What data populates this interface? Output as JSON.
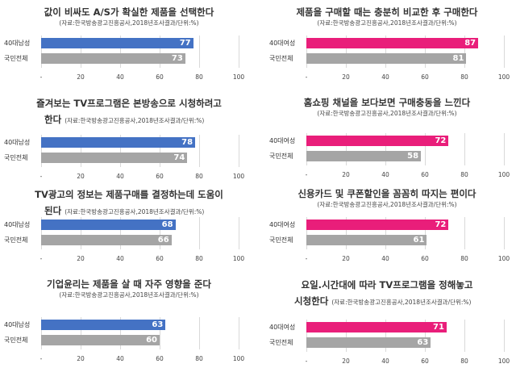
{
  "source": "(자료:한국방송광고진흥공사,2018년조사결과/단위:%)",
  "colors": {
    "male": "#4472c4",
    "female": "#e91e7a",
    "total": "#a5a5a5"
  },
  "chart_data": [
    {
      "type": "bar",
      "title": "값이 비싸도 A/S가 확실한 제품을 선택한다",
      "categories": [
        "40대남성",
        "국민전체"
      ],
      "values": [
        77,
        73
      ],
      "xlim": [
        0,
        100
      ],
      "ticks": [
        "-",
        "20",
        "40",
        "60",
        "80",
        "100"
      ],
      "group": "male"
    },
    {
      "type": "bar",
      "title": "제품을 구매할 때는 충분히 비교한 후 구매한다",
      "categories": [
        "40대여성",
        "국민전체"
      ],
      "values": [
        87,
        81
      ],
      "xlim": [
        0,
        100
      ],
      "ticks": [
        "-",
        "20",
        "40",
        "60",
        "80",
        "100"
      ],
      "group": "female"
    },
    {
      "type": "bar",
      "title": "즐겨보는 TV프로그램은 본방송으로 시청하려고",
      "title2": "한다",
      "categories": [
        "40대남성",
        "국민전체"
      ],
      "values": [
        78,
        74
      ],
      "xlim": [
        0,
        100
      ],
      "ticks": [
        "-",
        "20",
        "40",
        "60",
        "80",
        "100"
      ],
      "group": "male"
    },
    {
      "type": "bar",
      "title": "홈쇼핑 채널을 보다보면 구매충동을 느낀다",
      "categories": [
        "40대여성",
        "국민전체"
      ],
      "values": [
        72,
        58
      ],
      "xlim": [
        0,
        100
      ],
      "ticks": [
        "-",
        "20",
        "40",
        "60",
        "80",
        "100"
      ],
      "group": "female"
    },
    {
      "type": "bar",
      "title": "TV광고의 정보는 제품구매를 결정하는데 도움이",
      "title2": "된다",
      "categories": [
        "40대남성",
        "국민전체"
      ],
      "values": [
        68,
        66
      ],
      "xlim": [
        0,
        100
      ],
      "ticks": [
        "-",
        "20",
        "40",
        "60",
        "80",
        "100"
      ],
      "group": "male"
    },
    {
      "type": "bar",
      "title": "신용카드 및 쿠폰할인을 꼼꼼히 따지는 편이다",
      "categories": [
        "40대여성",
        "국민전체"
      ],
      "values": [
        72,
        61
      ],
      "xlim": [
        0,
        100
      ],
      "ticks": [
        "-",
        "20",
        "40",
        "60",
        "80",
        "100"
      ],
      "group": "female"
    },
    {
      "type": "bar",
      "title": "기업윤리는 제품을 살 때 자주 영향을 준다",
      "categories": [
        "40대남성",
        "국민전체"
      ],
      "values": [
        63,
        60
      ],
      "xlim": [
        0,
        100
      ],
      "ticks": [
        "-",
        "20",
        "40",
        "60",
        "80",
        "100"
      ],
      "group": "male"
    },
    {
      "type": "bar",
      "title": "요일.시간대에 따라 TV프로그램을 정해놓고",
      "title2": "시청한다",
      "categories": [
        "40대여성",
        "국민전체"
      ],
      "values": [
        71,
        63
      ],
      "xlim": [
        0,
        100
      ],
      "ticks": [
        "-",
        "20",
        "40",
        "60",
        "80",
        "100"
      ],
      "group": "female"
    }
  ]
}
